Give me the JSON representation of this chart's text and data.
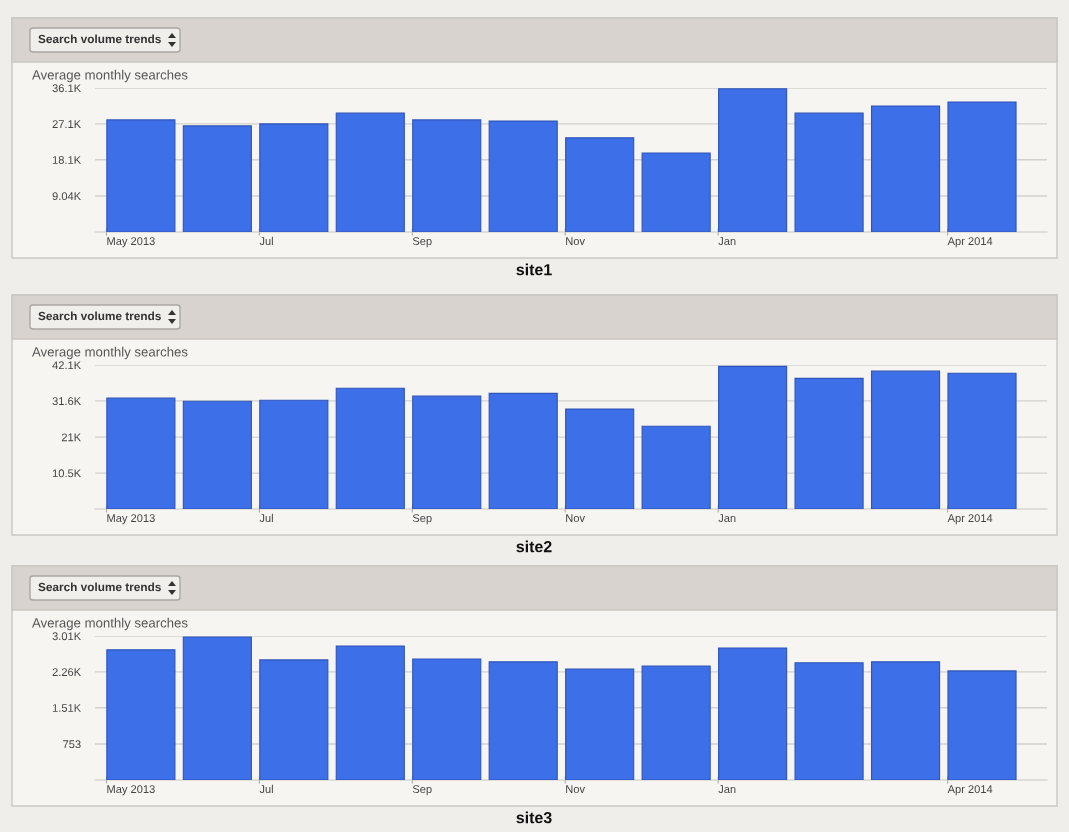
{
  "chart_data": [
    {
      "type": "bar",
      "title": "Search volume trends",
      "ylabel": "Average monthly searches",
      "annotations": [
        "site1"
      ],
      "categories": [
        "May 2013",
        null,
        "Jul",
        null,
        "Sep",
        null,
        "Nov",
        null,
        "Jan",
        null,
        null,
        "Apr 2014"
      ],
      "values": [
        28100,
        26600,
        27100,
        29800,
        28100,
        27800,
        23600,
        19800,
        35900,
        29800,
        31600,
        32600
      ],
      "color": "#3d6fe8",
      "ylim": [
        0,
        36100
      ],
      "yticks": [
        {
          "value": 9040,
          "label": "9.04K"
        },
        {
          "value": 18100,
          "label": "18.1K"
        },
        {
          "value": 27100,
          "label": "27.1K"
        },
        {
          "value": 36100,
          "label": "36.1K"
        }
      ],
      "grid": "y"
    },
    {
      "type": "bar",
      "title": "Search volume trends",
      "ylabel": "Average monthly searches",
      "annotations": [
        "site2"
      ],
      "categories": [
        "May 2013",
        null,
        "Jul",
        null,
        "Sep",
        null,
        "Nov",
        null,
        "Jan",
        null,
        null,
        "Apr 2014"
      ],
      "values": [
        32400,
        31500,
        31800,
        35300,
        33000,
        33800,
        29200,
        24200,
        41700,
        38200,
        40300,
        39700
      ],
      "color": "#3d6fe8",
      "ylim": [
        0,
        42100
      ],
      "yticks": [
        {
          "value": 10500,
          "label": "10.5K"
        },
        {
          "value": 21000,
          "label": "21K"
        },
        {
          "value": 31600,
          "label": "31.6K"
        },
        {
          "value": 42100,
          "label": "42.1K"
        }
      ],
      "grid": "y"
    },
    {
      "type": "bar",
      "title": "Search volume trends",
      "ylabel": "Average monthly searches",
      "annotations": [
        "site3"
      ],
      "categories": [
        "May 2013",
        null,
        "Jul",
        null,
        "Sep",
        null,
        "Nov",
        null,
        "Jan",
        null,
        null,
        "Apr 2014"
      ],
      "values": [
        2720,
        2990,
        2510,
        2800,
        2530,
        2470,
        2320,
        2380,
        2760,
        2450,
        2470,
        2280
      ],
      "color": "#3d6fe8",
      "ylim": [
        0,
        3010
      ],
      "yticks": [
        753,
        {
          "value": 1510,
          "label": "1.51K"
        },
        {
          "value": 2260,
          "label": "2.26K"
        },
        {
          "value": 3010,
          "label": "3.01K"
        }
      ],
      "grid": "y"
    }
  ]
}
